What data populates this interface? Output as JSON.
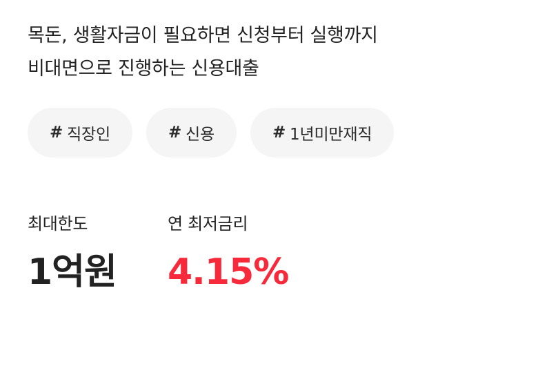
{
  "description": {
    "line1": "목돈, 생활자금이 필요하면 신청부터 실행까지",
    "line2": "비대면으로 진행하는 신용대출"
  },
  "tags": [
    {
      "hash": "#",
      "label": "직장인"
    },
    {
      "hash": "#",
      "label": "신용"
    },
    {
      "hash": "#",
      "label": "1년미만재직"
    }
  ],
  "stats": {
    "max_limit": {
      "label": "최대한도",
      "value": "1억원"
    },
    "min_rate": {
      "label": "연 최저금리",
      "value": "4.15%"
    }
  },
  "colors": {
    "accent_red": "#f72a3c",
    "tag_background": "#f5f5f5",
    "text": "#222222"
  }
}
